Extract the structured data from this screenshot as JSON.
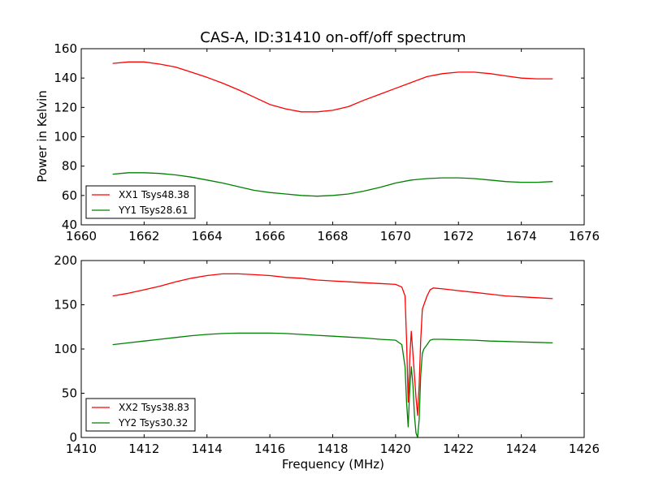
{
  "chart_data": [
    {
      "type": "line",
      "title": "CAS-A, ID:31410 on-off/off spectrum",
      "xlabel": "",
      "ylabel": "Power in Kelvin",
      "xlim": [
        1660,
        1676
      ],
      "ylim": [
        40,
        160
      ],
      "xticks": [
        1660,
        1662,
        1664,
        1666,
        1668,
        1670,
        1672,
        1674,
        1676
      ],
      "yticks": [
        40,
        60,
        80,
        100,
        120,
        140,
        160
      ],
      "legend_position": "lower-left",
      "series": [
        {
          "name": "XX1 Tsys48.38",
          "color": "#ff0000",
          "x": [
            1661,
            1661.5,
            1662,
            1662.5,
            1663,
            1663.5,
            1664,
            1664.5,
            1665,
            1665.5,
            1666,
            1666.5,
            1667,
            1667.5,
            1668,
            1668.5,
            1669,
            1669.5,
            1670,
            1670.5,
            1671,
            1671.5,
            1672,
            1672.5,
            1673,
            1673.5,
            1674,
            1674.5,
            1675
          ],
          "y": [
            150,
            151,
            151,
            149.5,
            147.5,
            144,
            140.5,
            136.5,
            132,
            127,
            122,
            119,
            117,
            117,
            118,
            120.5,
            125,
            129,
            133,
            137,
            141,
            143,
            144,
            144,
            143,
            141.5,
            140,
            139.5,
            139.5
          ]
        },
        {
          "name": "YY1 Tsys28.61",
          "color": "#008000",
          "x": [
            1661,
            1661.5,
            1662,
            1662.5,
            1663,
            1663.5,
            1664,
            1664.5,
            1665,
            1665.5,
            1666,
            1666.5,
            1667,
            1667.5,
            1668,
            1668.5,
            1669,
            1669.5,
            1670,
            1670.5,
            1671,
            1671.5,
            1672,
            1672.5,
            1673,
            1673.5,
            1674,
            1674.5,
            1675
          ],
          "y": [
            74.5,
            75.5,
            75.5,
            75,
            74,
            72.5,
            70.5,
            68.5,
            66,
            63.5,
            62,
            61,
            60,
            59.5,
            60,
            61,
            63,
            65.5,
            68.5,
            70.5,
            71.5,
            72,
            72,
            71.5,
            70.5,
            69.5,
            69,
            69,
            69.5
          ]
        }
      ]
    },
    {
      "type": "line",
      "title": "",
      "xlabel": "Frequency (MHz)",
      "ylabel": "",
      "xlim": [
        1410,
        1426
      ],
      "ylim": [
        0,
        200
      ],
      "xticks": [
        1410,
        1412,
        1414,
        1416,
        1418,
        1420,
        1422,
        1424,
        1426
      ],
      "yticks": [
        0,
        50,
        100,
        150,
        200
      ],
      "legend_position": "lower-left",
      "series": [
        {
          "name": "XX2 Tsys38.83",
          "color": "#ff0000",
          "x": [
            1411,
            1411.5,
            1412,
            1412.5,
            1413,
            1413.5,
            1414,
            1414.5,
            1415,
            1415.5,
            1416,
            1416.5,
            1417,
            1417.5,
            1418,
            1418.5,
            1419,
            1419.5,
            1420,
            1420.2,
            1420.3,
            1420.35,
            1420.4,
            1420.45,
            1420.5,
            1420.55,
            1420.6,
            1420.65,
            1420.7,
            1420.75,
            1420.8,
            1420.85,
            1420.9,
            1421,
            1421.1,
            1421.2,
            1421.5,
            1422,
            1422.5,
            1423,
            1423.5,
            1424,
            1424.5,
            1425
          ],
          "y": [
            160,
            163,
            167,
            171,
            176,
            180,
            183,
            185,
            185,
            184,
            183,
            181,
            180,
            178,
            177,
            176,
            175,
            174,
            173,
            170,
            160,
            110,
            40,
            90,
            120,
            95,
            70,
            45,
            25,
            60,
            110,
            145,
            150,
            160,
            167,
            169,
            168,
            166,
            164,
            162,
            160,
            159,
            158,
            157
          ]
        },
        {
          "name": "YY2 Tsys30.32",
          "color": "#008000",
          "x": [
            1411,
            1411.5,
            1412,
            1412.5,
            1413,
            1413.5,
            1414,
            1414.5,
            1415,
            1415.5,
            1416,
            1416.5,
            1417,
            1417.5,
            1418,
            1418.5,
            1419,
            1419.5,
            1420,
            1420.2,
            1420.3,
            1420.35,
            1420.4,
            1420.45,
            1420.5,
            1420.55,
            1420.6,
            1420.65,
            1420.7,
            1420.75,
            1420.8,
            1420.85,
            1420.9,
            1421,
            1421.1,
            1421.2,
            1421.5,
            1422,
            1422.5,
            1423,
            1423.5,
            1424,
            1424.5,
            1425
          ],
          "y": [
            105,
            107,
            109,
            111,
            113,
            115,
            116.5,
            117.5,
            118,
            118,
            118,
            117.5,
            116.5,
            115.5,
            114.5,
            113.5,
            112.5,
            111,
            110,
            105,
            80,
            40,
            12,
            55,
            80,
            60,
            25,
            5,
            0,
            20,
            70,
            95,
            100,
            105,
            110,
            111,
            111,
            110.5,
            110,
            109,
            108.5,
            108,
            107.5,
            107
          ]
        }
      ]
    }
  ]
}
